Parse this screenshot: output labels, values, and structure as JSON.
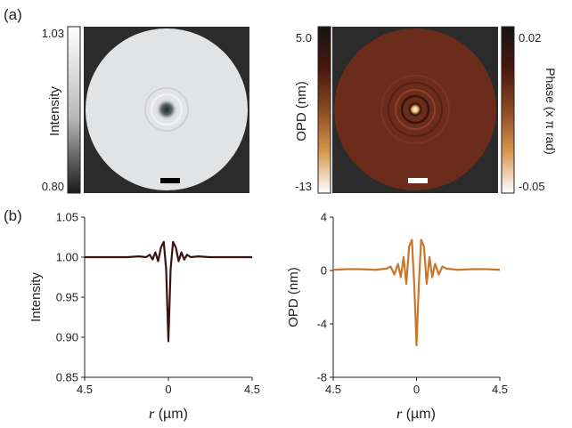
{
  "panel_labels": {
    "a": "(a)",
    "b": "(b)"
  },
  "colors": {
    "intensity_line": "#3a1210",
    "opd_line": "#c8782e",
    "frame_background": "#2b2b2b",
    "intensity_disk": "#e2e3e5",
    "opd_disk": "#6b2c1c",
    "scale_bar_dark": "#000000",
    "scale_bar_light": "#ffffff"
  },
  "images": [
    {
      "type": "heatmap",
      "content": "circular intensity map with dark central spot",
      "colorbar_label": "Intensity",
      "colorbar_max": "1.03",
      "colorbar_min": "0.80",
      "colormap": "gray"
    },
    {
      "type": "heatmap",
      "content": "circular OPD / phase map with bright central spot and rings",
      "colorbar_label": "OPD (nm)",
      "colorbar_max": "5.0",
      "colorbar_min": "-13",
      "colorbar2_label": "Phase (x π rad)",
      "colorbar2_max": "0.02",
      "colorbar2_min": "-0.05",
      "colormap": "brown-orange"
    }
  ],
  "chart_data": [
    {
      "type": "line",
      "ylabel": "Intensity",
      "xlabel_var": "r",
      "xlabel_unit": " (µm)",
      "xticks": [
        "4.5",
        "0",
        "4.5"
      ],
      "xlim": [
        -4.5,
        4.5
      ],
      "ylim": [
        0.85,
        1.05
      ],
      "yticks": [
        "1.05",
        "1.00",
        "0.95",
        "0.90",
        "0.85"
      ],
      "ytick_values": [
        1.05,
        1.0,
        0.95,
        0.9,
        0.85
      ],
      "x": [
        -4.5,
        -3.8,
        -3.0,
        -2.2,
        -1.6,
        -1.2,
        -1.0,
        -0.85,
        -0.7,
        -0.55,
        -0.4,
        -0.25,
        -0.12,
        0,
        0.12,
        0.25,
        0.4,
        0.55,
        0.7,
        0.85,
        1.0,
        1.2,
        1.6,
        2.2,
        3.0,
        3.8,
        4.5
      ],
      "values": [
        1.0,
        1.0,
        1.0,
        1.0,
        1.001,
        1.0,
        1.003,
        0.997,
        1.006,
        0.995,
        1.012,
        1.019,
        0.985,
        0.895,
        0.985,
        1.019,
        1.012,
        0.995,
        1.006,
        0.997,
        1.003,
        1.0,
        1.001,
        1.0,
        1.0,
        1.0,
        1.0
      ]
    },
    {
      "type": "line",
      "ylabel": "OPD (nm)",
      "xlabel_var": "r",
      "xlabel_unit": " (µm)",
      "xticks": [
        "4.5",
        "0",
        "4.5"
      ],
      "xlim": [
        -4.5,
        4.5
      ],
      "ylim": [
        -8,
        4
      ],
      "yticks": [
        "4",
        "0",
        "-4",
        "-8"
      ],
      "ytick_values": [
        4,
        0,
        -4,
        -8
      ],
      "x": [
        -4.5,
        -3.8,
        -3.0,
        -2.2,
        -1.6,
        -1.4,
        -1.2,
        -1.0,
        -0.85,
        -0.7,
        -0.55,
        -0.4,
        -0.25,
        -0.12,
        0,
        0.12,
        0.25,
        0.4,
        0.55,
        0.7,
        0.85,
        1.0,
        1.2,
        1.4,
        1.6,
        2.2,
        3.0,
        3.8,
        4.5
      ],
      "values": [
        0.05,
        0.1,
        0.1,
        0.05,
        0.15,
        0.3,
        -0.3,
        0.5,
        -0.5,
        1.0,
        -1.0,
        1.8,
        2.3,
        -1.2,
        -5.6,
        -1.2,
        2.3,
        1.8,
        -1.0,
        1.0,
        -0.5,
        0.5,
        -0.3,
        0.3,
        0.15,
        0.05,
        0.1,
        0.1,
        0.05
      ]
    }
  ]
}
